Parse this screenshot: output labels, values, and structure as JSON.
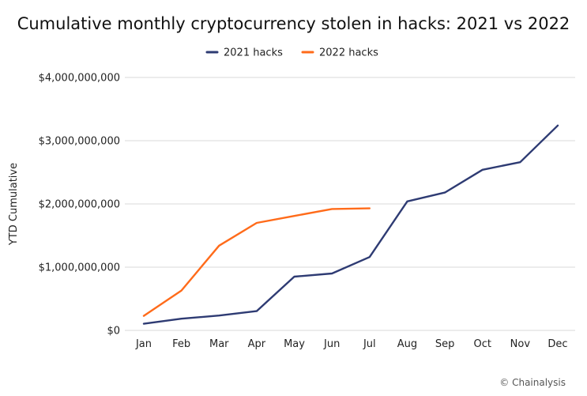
{
  "chart_data": {
    "type": "line",
    "title": "Cumulative monthly cryptocurrency stolen in hacks: 2021 vs 2022",
    "xlabel": "",
    "ylabel": "YTD Cumulative",
    "categories": [
      "Jan",
      "Feb",
      "Mar",
      "Apr",
      "May",
      "Jun",
      "Jul",
      "Aug",
      "Sep",
      "Oct",
      "Nov",
      "Dec"
    ],
    "ylim": [
      0,
      4000000000
    ],
    "yticks": [
      0,
      1000000000,
      2000000000,
      3000000000,
      4000000000
    ],
    "ytick_labels": [
      "$0",
      "$1,000,000,000",
      "$2,000,000,000",
      "$3,000,000,000",
      "$4,000,000,000"
    ],
    "grid": "horizontal",
    "legend_position": "top-center",
    "series": [
      {
        "name": "2021 hacks",
        "color": "#2e3b73",
        "values": [
          105000000,
          185000000,
          235000000,
          305000000,
          850000000,
          900000000,
          1160000000,
          2040000000,
          2180000000,
          2540000000,
          2660000000,
          3240000000
        ]
      },
      {
        "name": "2022 hacks",
        "color": "#ff6b1a",
        "values": [
          230000000,
          630000000,
          1340000000,
          1700000000,
          1810000000,
          1920000000,
          1930000000,
          null,
          null,
          null,
          null,
          null
        ]
      }
    ]
  },
  "source": "© Chainalysis"
}
